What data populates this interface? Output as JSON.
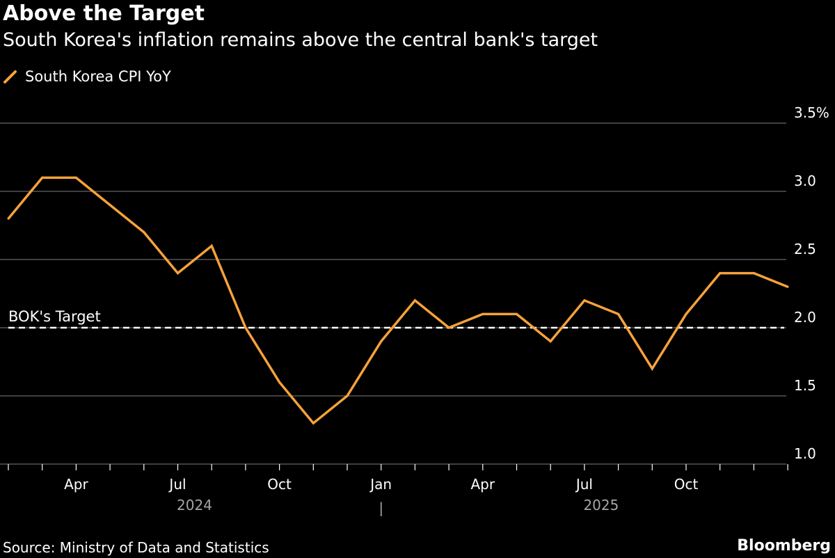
{
  "chart_data": {
    "type": "line",
    "title": "Above the Target",
    "subtitle": "South Korea's inflation remains above the central bank's target",
    "series": [
      {
        "name": "South Korea CPI YoY",
        "color": "#f7a23b",
        "values": [
          2.8,
          3.1,
          3.1,
          2.9,
          2.7,
          2.4,
          2.6,
          2.0,
          1.6,
          1.3,
          1.5,
          1.9,
          2.2,
          2.0,
          2.1,
          2.1,
          1.9,
          2.2,
          2.1,
          1.7,
          2.1,
          2.4,
          2.4,
          2.3
        ]
      }
    ],
    "x": [
      "2024-02",
      "2024-03",
      "2024-04",
      "2024-05",
      "2024-06",
      "2024-07",
      "2024-08",
      "2024-09",
      "2024-10",
      "2024-11",
      "2024-12",
      "2025-01",
      "2025-02",
      "2025-03",
      "2025-04",
      "2025-05",
      "2025-06",
      "2025-07",
      "2025-08",
      "2025-09",
      "2025-10",
      "2025-11",
      "2025-12",
      "2026-01"
    ],
    "ylim": [
      1.0,
      3.5
    ],
    "y_ticks": [
      "1.0",
      "1.5",
      "2.0",
      "2.5",
      "3.0",
      "3.5%"
    ],
    "y_tick_values": [
      1.0,
      1.5,
      2.0,
      2.5,
      3.0,
      3.5
    ],
    "month_labels": [
      {
        "label": "Apr",
        "index": 2
      },
      {
        "label": "Jul",
        "index": 5
      },
      {
        "label": "Oct",
        "index": 8
      },
      {
        "label": "Jan",
        "index": 11
      },
      {
        "label": "Apr",
        "index": 14
      },
      {
        "label": "Jul",
        "index": 17
      },
      {
        "label": "Oct",
        "index": 20
      }
    ],
    "year_labels": [
      {
        "label": "2024",
        "index": 5
      },
      {
        "label": "2025",
        "index": 17
      }
    ],
    "year_separator": "|",
    "year_separator_index": 11,
    "reference_line": {
      "label": "BOK's Target",
      "value": 2.0,
      "color": "#ffffff"
    },
    "grid": true,
    "legend_position": "top-left",
    "xlabel": "",
    "ylabel": ""
  },
  "source": "Source: Ministry of Data and Statistics",
  "brand": "Bloomberg",
  "colors": {
    "background": "#000000",
    "gridline": "#666666",
    "axis_text": "#ffffff",
    "year_text": "#a6a6a6",
    "line": "#f7a23b"
  }
}
